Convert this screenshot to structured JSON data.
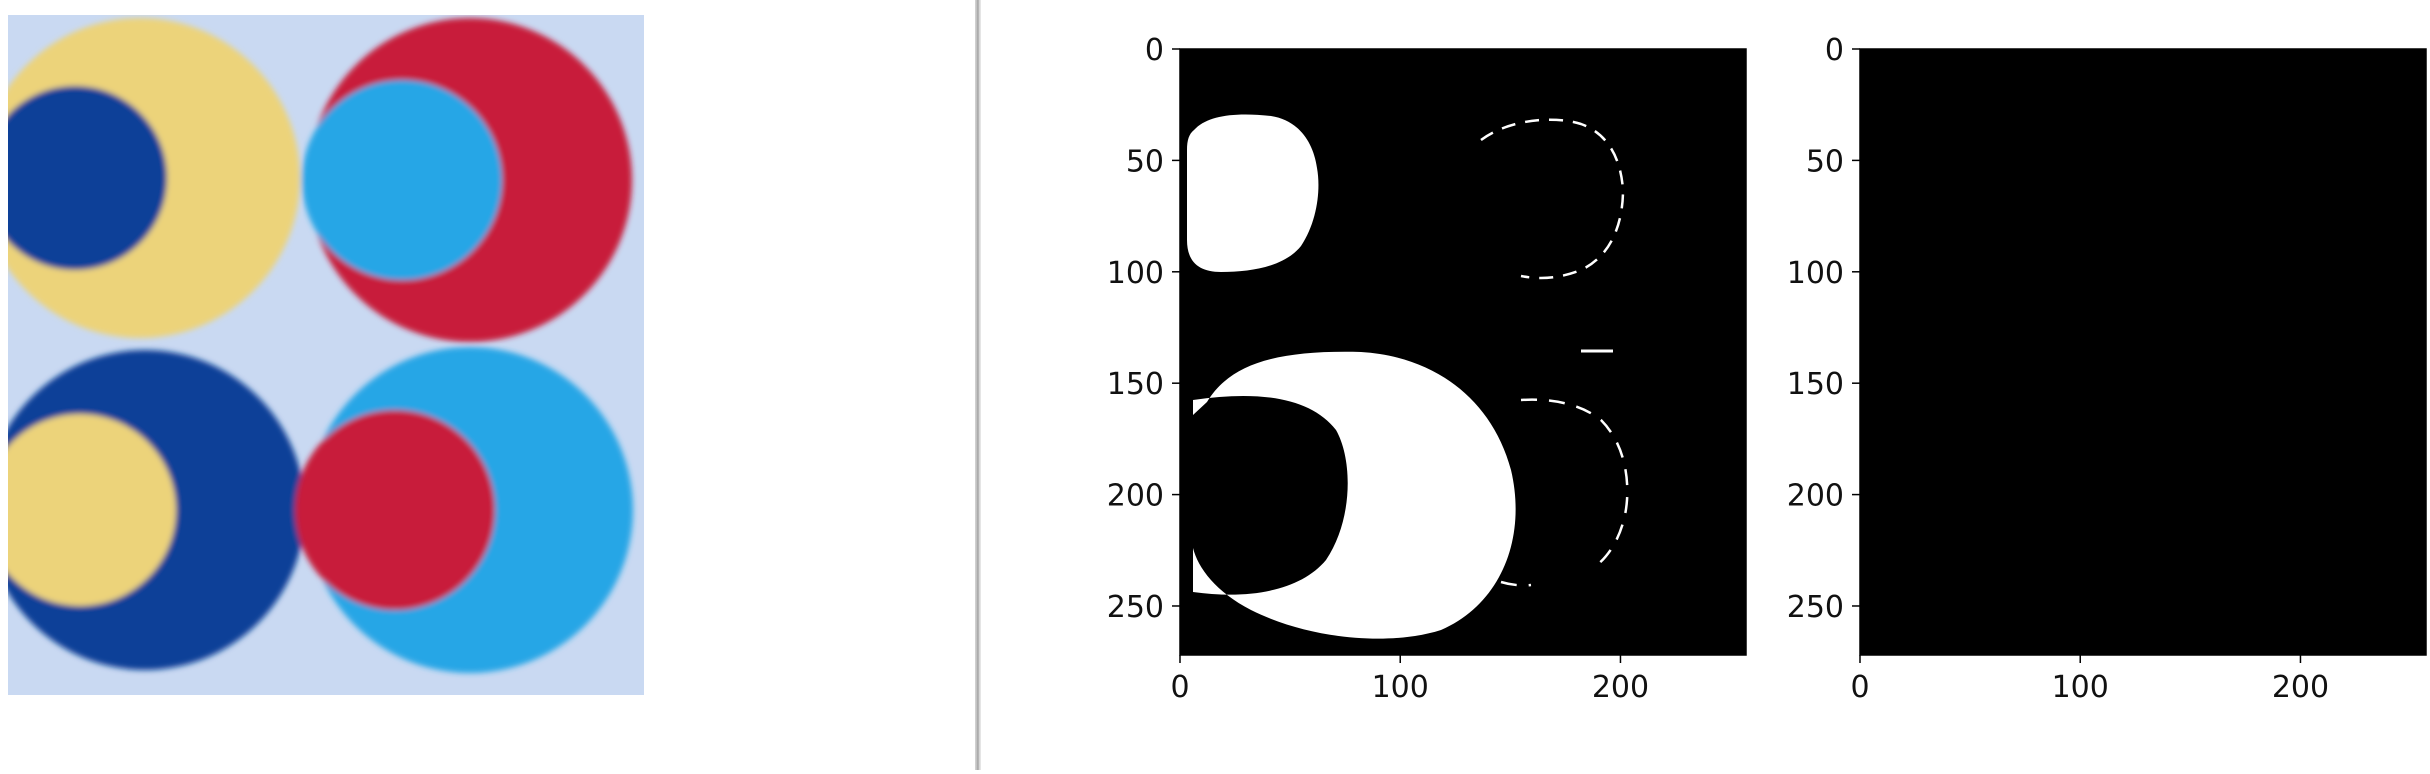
{
  "source_image": {
    "name": "concentric circles source image",
    "background": "#c9d9f2",
    "colors": {
      "yellow": "#ecd37a",
      "red": "#c81e3a",
      "light_blue": "#27a6e6",
      "dark_blue": "#0a3f98"
    }
  },
  "plots": [
    {
      "name": "binary mask",
      "foreground_color": "#ffffff",
      "background_color": "#000000",
      "x_ticks": [
        "0",
        "100",
        "200"
      ],
      "y_ticks": [
        "0",
        "50",
        "100",
        "150",
        "200",
        "250"
      ],
      "xlim": [
        0,
        257
      ],
      "ylim": [
        272,
        0
      ]
    },
    {
      "name": "masked colour result",
      "foreground_color": "#0b3ba1",
      "background_color": "#000000",
      "x_ticks": [
        "0",
        "100",
        "200"
      ],
      "y_ticks": [
        "0",
        "50",
        "100",
        "150",
        "200",
        "250"
      ],
      "xlim": [
        0,
        257
      ],
      "ylim": [
        272,
        0
      ]
    }
  ]
}
